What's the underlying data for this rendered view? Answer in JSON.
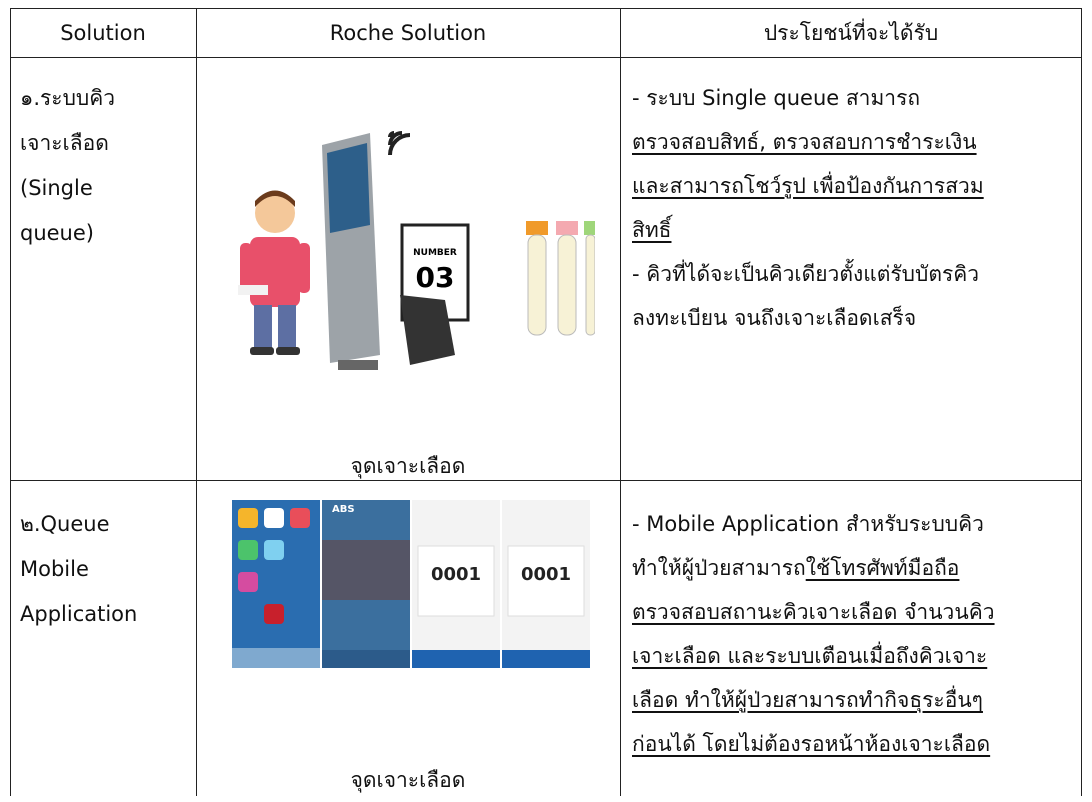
{
  "table": {
    "header": [
      "Solution",
      "Roche Solution",
      "ประโยชน์ที่จะได้รับ"
    ],
    "rows": [
      {
        "solution": [
          "๑.ระบบคิว",
          "เจาะเลือด",
          "(Single",
          "queue)"
        ],
        "image_caption": "จุดเจาะเลือด",
        "image_texts": [
          "NUMBER",
          "03"
        ],
        "benefit": [
          [
            {
              "text": "- ระบบ Single queue สามารถ",
              "underline": false
            }
          ],
          [
            {
              "text": "ตรวจสอบสิทธ์, ตรวจสอบการชำระเงิน",
              "underline": true
            }
          ],
          [
            {
              "text": "และสามารถโชว์รูป เพื่อป้องกันการสวม",
              "underline": true
            }
          ],
          [
            {
              "text": "สิทธิ์",
              "underline": true
            }
          ],
          [
            {
              "text": "- คิวที่ได้จะเป็นคิวเดียวตั้งแต่รับบัตรคิว",
              "underline": false
            }
          ],
          [
            {
              "text": "ลงทะเบียน จนถึงเจาะเลือดเสร็จ",
              "underline": false
            }
          ]
        ]
      },
      {
        "solution": [
          "๒.Queue",
          "Mobile",
          "Application"
        ],
        "image_caption": "จุดเจาะเลือด",
        "image_texts": [
          "ABS",
          "0001",
          "0001"
        ],
        "benefit": [
          [
            {
              "text": "- Mobile Application สำหรับระบบคิว",
              "underline": false
            }
          ],
          [
            {
              "text": "ทำให้ผู้ป่วยสามารถ",
              "underline": false
            },
            {
              "text": "ใช้โทรศัพท์มือถือ",
              "underline": true
            }
          ],
          [
            {
              "text": "ตรวจสอบสถานะคิวเจาะเลือด จำนวนคิว",
              "underline": true
            }
          ],
          [
            {
              "text": "เจาะเลือด และระบบเตือนเมื่อถึงคิวเจาะ",
              "underline": true
            }
          ],
          [
            {
              "text": "เลือด ทำให้ผู้ป่วยสามารถทำกิจธุระอื่นๆ",
              "underline": true
            }
          ],
          [
            {
              "text": "ก่อนได้ โดยไม่ต้องรอหน้าห้องเจาะเลือด",
              "underline": true
            }
          ]
        ]
      }
    ]
  }
}
